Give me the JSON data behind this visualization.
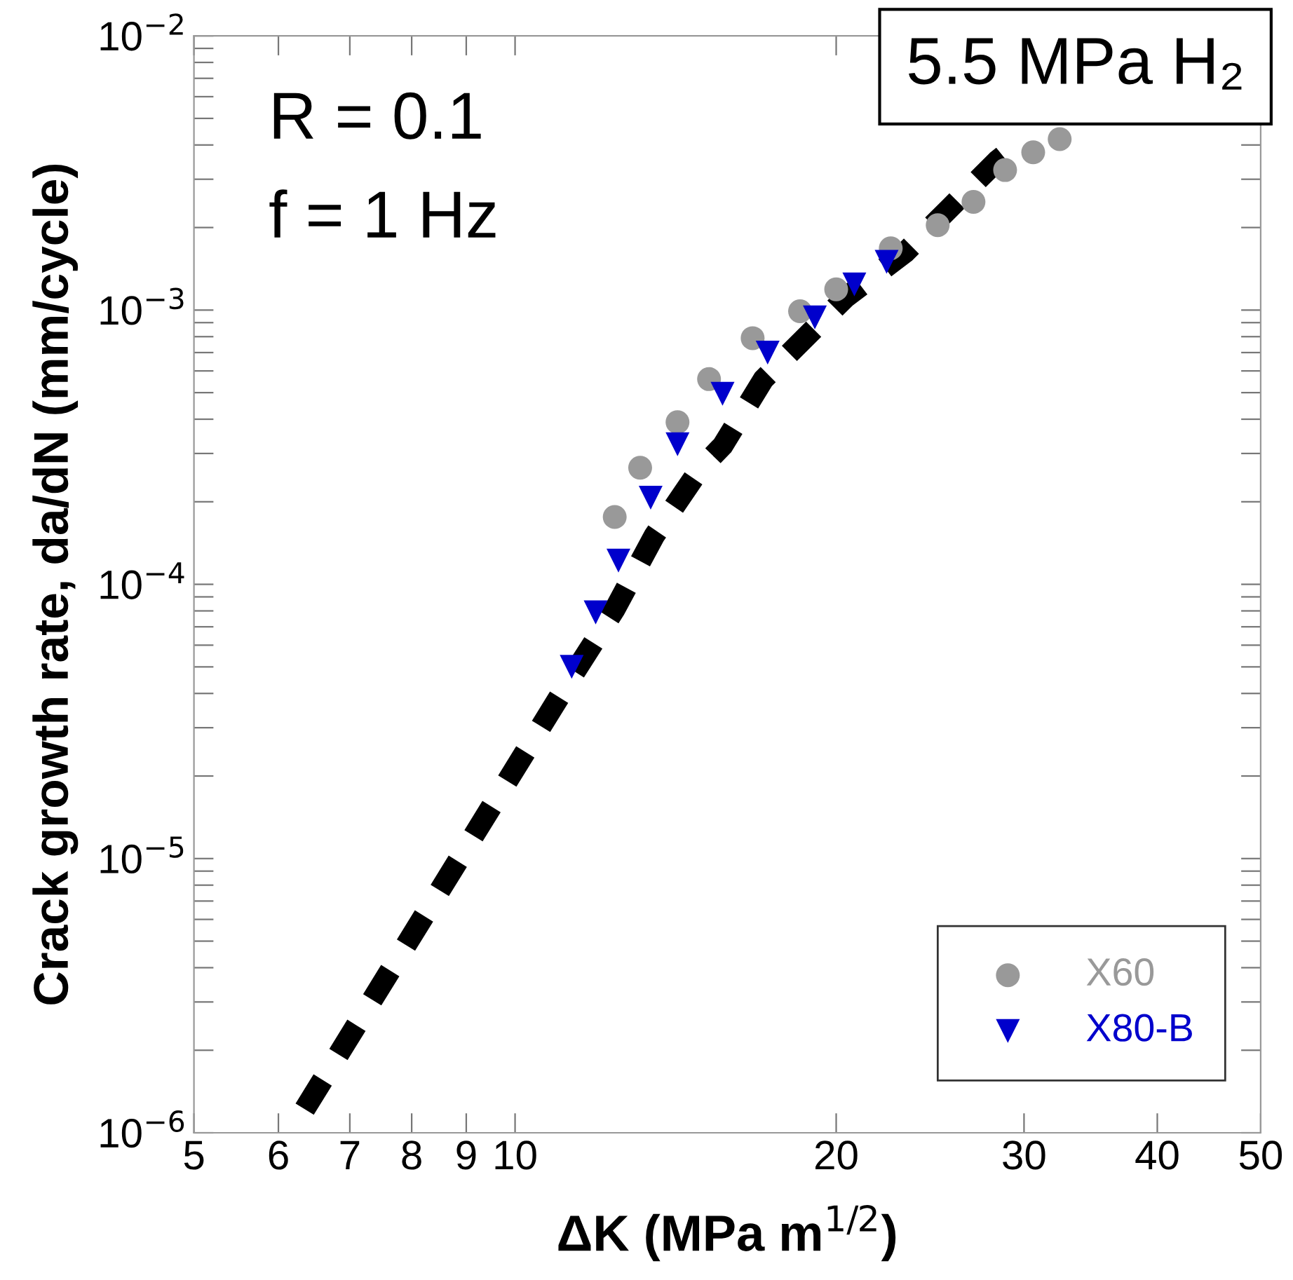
{
  "chart_data": {
    "type": "scatter",
    "xlabel": "ΔK (MPa m$^{1/2}$)",
    "ylabel": "Crack growth rate, da/dN (mm/cycle)",
    "log": "xy",
    "grid": false,
    "legend": "bottom right",
    "xlim": [
      5,
      50
    ],
    "xticks": [
      5,
      6,
      7,
      8,
      9,
      10,
      20,
      30,
      40,
      50
    ],
    "ylim": [
      1e-06,
      0.01
    ],
    "yticks": [
      {
        "value": 1e-06,
        "label": "10$^{−6}$"
      },
      {
        "value": 2e-06,
        "label": null
      },
      {
        "value": 3e-06,
        "label": null
      },
      {
        "value": 4e-06,
        "label": null
      },
      {
        "value": 5e-06,
        "label": null
      },
      {
        "value": 6e-06,
        "label": null
      },
      {
        "value": 7e-06,
        "label": null
      },
      {
        "value": 8e-06,
        "label": null
      },
      {
        "value": 9e-06,
        "label": null
      },
      {
        "value": 1e-05,
        "label": "10$^{−5}$"
      },
      {
        "value": 2e-05,
        "label": null
      },
      {
        "value": 3e-05,
        "label": null
      },
      {
        "value": 4e-05,
        "label": null
      },
      {
        "value": 5e-05,
        "label": null
      },
      {
        "value": 6e-05,
        "label": null
      },
      {
        "value": 7e-05,
        "label": null
      },
      {
        "value": 8e-05,
        "label": null
      },
      {
        "value": 9e-05,
        "label": null
      },
      {
        "value": 0.0001,
        "label": "10$^{−4}$"
      },
      {
        "value": 0.0002,
        "label": null
      },
      {
        "value": 0.0003,
        "label": null
      },
      {
        "value": 0.0004,
        "label": null
      },
      {
        "value": 0.0005,
        "label": null
      },
      {
        "value": 0.0006,
        "label": null
      },
      {
        "value": 0.0007,
        "label": null
      },
      {
        "value": 0.0008,
        "label": null
      },
      {
        "value": 0.0009,
        "label": null
      },
      {
        "value": 0.001,
        "label": "10$^{−3}$"
      },
      {
        "value": 0.002,
        "label": null
      },
      {
        "value": 0.003,
        "label": null
      },
      {
        "value": 0.004,
        "label": null
      },
      {
        "value": 0.005,
        "label": null
      },
      {
        "value": 0.006,
        "label": null
      },
      {
        "value": 0.007,
        "label": null
      },
      {
        "value": 0.008,
        "label": null
      },
      {
        "value": 0.009,
        "label": null
      },
      {
        "value": 0.01,
        "label": "10$^{−2}$"
      }
    ],
    "annotations": [
      "R = 0.1",
      "f = 1 Hz",
      "5.5 MPa H₂"
    ],
    "series": [
      {
        "type": "line",
        "color": "#000000",
        "line_style": "dashed",
        "marker": "none",
        "x": [
          6.35,
          11.3,
          12.4,
          13.5,
          14.9,
          15.65,
          17.1,
          20.4,
          23.2,
          25.6,
          28.3,
          30.0
        ],
        "values": [
          1.22e-06,
          4.6e-05,
          8.1e-05,
          0.00015,
          0.000263,
          0.00032,
          0.00056,
          0.00111,
          0.00162,
          0.00237,
          0.0035,
          0.0042
        ]
      },
      {
        "name": "X60",
        "color": "#999999",
        "marker": "circle",
        "x": [
          12.4,
          13.1,
          14.2,
          15.2,
          16.7,
          18.5,
          20.0,
          22.5,
          24.9,
          26.9,
          28.8,
          30.6,
          32.4
        ],
        "values": [
          0.000176,
          0.000266,
          0.00039,
          0.00056,
          0.00079,
          0.00099,
          0.00119,
          0.00168,
          0.00204,
          0.00248,
          0.00324,
          0.00376,
          0.0042
        ]
      },
      {
        "name": "X80-B",
        "color": "#0000cc",
        "marker": "triangle",
        "x": [
          11.3,
          11.9,
          12.5,
          13.4,
          14.2,
          15.65,
          17.25,
          19.1,
          20.8,
          22.3
        ],
        "values": [
          5e-05,
          7.9e-05,
          0.000122,
          0.000207,
          0.000324,
          0.000495,
          0.0007,
          0.00094,
          0.00124,
          0.0015
        ]
      }
    ]
  }
}
